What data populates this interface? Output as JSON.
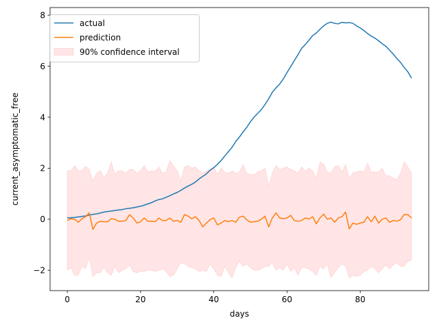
{
  "chart_data": {
    "type": "line",
    "title": "",
    "xlabel": "days",
    "ylabel": "current_asymptomatic_free",
    "xlim": [
      -4.7,
      98.7
    ],
    "ylim": [
      -2.8,
      8.3
    ],
    "x_ticks": [
      0,
      20,
      40,
      60,
      80
    ],
    "y_ticks": [
      -2,
      0,
      2,
      4,
      6,
      8
    ],
    "x_tick_labels": [
      "0",
      "20",
      "40",
      "60",
      "80"
    ],
    "y_tick_labels": [
      "−2",
      "0",
      "2",
      "4",
      "6",
      "8"
    ],
    "grid": false,
    "legend_position": "top-left",
    "x": [
      0,
      1,
      2,
      3,
      4,
      5,
      6,
      7,
      8,
      9,
      10,
      11,
      12,
      13,
      14,
      15,
      16,
      17,
      18,
      19,
      20,
      21,
      22,
      23,
      24,
      25,
      26,
      27,
      28,
      29,
      30,
      31,
      32,
      33,
      34,
      35,
      36,
      37,
      38,
      39,
      40,
      41,
      42,
      43,
      44,
      45,
      46,
      47,
      48,
      49,
      50,
      51,
      52,
      53,
      54,
      55,
      56,
      57,
      58,
      59,
      60,
      61,
      62,
      63,
      64,
      65,
      66,
      67,
      68,
      69,
      70,
      71,
      72,
      73,
      74,
      75,
      76,
      77,
      78,
      79,
      80,
      81,
      82,
      83,
      84,
      85,
      86,
      87,
      88,
      89,
      90,
      91,
      92,
      93,
      94
    ],
    "series": [
      {
        "name": "actual",
        "color": "#1f77b4",
        "kind": "line",
        "values": [
          0.05,
          0.06,
          0.07,
          0.09,
          0.11,
          0.13,
          0.16,
          0.19,
          0.21,
          0.24,
          0.28,
          0.3,
          0.32,
          0.34,
          0.36,
          0.38,
          0.41,
          0.43,
          0.45,
          0.48,
          0.51,
          0.55,
          0.6,
          0.65,
          0.72,
          0.77,
          0.8,
          0.86,
          0.92,
          0.99,
          1.05,
          1.13,
          1.22,
          1.3,
          1.37,
          1.46,
          1.58,
          1.68,
          1.78,
          1.92,
          2.02,
          2.15,
          2.3,
          2.48,
          2.65,
          2.82,
          3.05,
          3.22,
          3.42,
          3.6,
          3.82,
          4.0,
          4.15,
          4.3,
          4.5,
          4.72,
          4.98,
          5.15,
          5.3,
          5.5,
          5.75,
          5.98,
          6.22,
          6.45,
          6.7,
          6.85,
          7.02,
          7.2,
          7.3,
          7.45,
          7.58,
          7.68,
          7.73,
          7.68,
          7.66,
          7.72,
          7.7,
          7.71,
          7.68,
          7.58,
          7.5,
          7.4,
          7.28,
          7.18,
          7.1,
          7.0,
          6.88,
          6.78,
          6.63,
          6.48,
          6.3,
          6.15,
          5.95,
          5.78,
          5.53
        ]
      },
      {
        "name": "prediction",
        "color": "#ff7f0e",
        "kind": "line",
        "values": [
          -0.05,
          0.02,
          0.0,
          -0.12,
          0.02,
          0.1,
          0.25,
          -0.4,
          -0.15,
          -0.08,
          -0.1,
          -0.1,
          0.02,
          0.0,
          -0.08,
          -0.08,
          -0.05,
          0.18,
          0.05,
          -0.15,
          -0.1,
          0.05,
          -0.08,
          -0.08,
          -0.1,
          0.05,
          -0.05,
          -0.05,
          0.05,
          -0.08,
          -0.05,
          -0.12,
          0.18,
          0.12,
          0.02,
          0.1,
          -0.05,
          -0.3,
          -0.15,
          -0.02,
          0.05,
          -0.22,
          -0.15,
          -0.05,
          -0.1,
          -0.05,
          -0.12,
          0.08,
          0.12,
          -0.02,
          -0.12,
          -0.1,
          -0.08,
          0.0,
          0.12,
          -0.3,
          0.05,
          0.25,
          0.05,
          0.02,
          0.05,
          0.15,
          -0.05,
          -0.08,
          -0.05,
          0.05,
          0.0,
          0.1,
          -0.18,
          0.05,
          0.2,
          0.0,
          0.05,
          -0.12,
          0.05,
          0.1,
          0.28,
          -0.38,
          -0.15,
          -0.2,
          -0.15,
          -0.12,
          0.1,
          -0.1,
          0.12,
          -0.15,
          0.0,
          0.05,
          -0.12,
          -0.05,
          -0.08,
          -0.02,
          0.18,
          0.18,
          0.05
        ]
      },
      {
        "name": "90% confidence interval",
        "color": "#ff0000",
        "kind": "band",
        "upper": [
          1.9,
          1.9,
          2.1,
          1.9,
          1.9,
          2.08,
          1.95,
          1.5,
          1.8,
          1.9,
          1.65,
          1.8,
          2.25,
          1.75,
          1.9,
          1.9,
          1.8,
          1.95,
          1.95,
          1.8,
          1.9,
          2.1,
          1.85,
          1.9,
          1.88,
          2.05,
          1.8,
          1.85,
          2.3,
          2.1,
          1.9,
          1.5,
          2.05,
          2.1,
          2.0,
          2.05,
          1.9,
          1.8,
          1.9,
          1.95,
          2.05,
          1.75,
          2.0,
          1.85,
          1.8,
          1.9,
          1.8,
          1.85,
          2.15,
          1.8,
          1.75,
          1.75,
          1.85,
          1.9,
          2.0,
          1.3,
          1.8,
          2.1,
          1.95,
          2.0,
          2.05,
          1.95,
          1.9,
          1.8,
          2.05,
          1.88,
          2.0,
          1.9,
          1.6,
          2.25,
          2.15,
          1.85,
          1.8,
          2.05,
          2.1,
          1.85,
          2.15,
          1.6,
          1.82,
          1.85,
          1.9,
          1.85,
          2.2,
          1.85,
          1.85,
          1.85,
          2.0,
          1.7,
          1.7,
          1.6,
          1.55,
          1.8,
          2.25,
          2.05,
          1.8
        ],
        "lower": [
          -2.0,
          -1.9,
          -2.2,
          -2.2,
          -1.85,
          -1.95,
          -1.5,
          -2.25,
          -2.1,
          -2.1,
          -1.9,
          -2.1,
          -2.2,
          -1.85,
          -2.1,
          -2.0,
          -1.95,
          -1.8,
          -2.05,
          -2.1,
          -2.05,
          -2.05,
          -2.0,
          -2.0,
          -2.05,
          -2.0,
          -1.95,
          -2.05,
          -2.25,
          -2.2,
          -1.95,
          -1.7,
          -1.75,
          -1.85,
          -1.9,
          -1.95,
          -2.05,
          -2.0,
          -2.05,
          -1.75,
          -1.95,
          -2.2,
          -2.25,
          -1.85,
          -2.1,
          -2.3,
          -1.9,
          -1.65,
          -1.85,
          -1.75,
          -1.9,
          -2.0,
          -2.0,
          -1.95,
          -1.85,
          -1.85,
          -1.7,
          -2.0,
          -1.9,
          -2.0,
          -1.75,
          -2.05,
          -1.9,
          -2.2,
          -1.9,
          -1.9,
          -1.95,
          -2.05,
          -2.2,
          -1.85,
          -1.95,
          -1.75,
          -2.3,
          -2.1,
          -1.9,
          -1.75,
          -1.85,
          -2.3,
          -2.2,
          -2.25,
          -2.2,
          -2.05,
          -2.0,
          -1.85,
          -1.95,
          -2.1,
          -1.95,
          -1.8,
          -1.95,
          -1.8,
          -1.7,
          -1.85,
          -1.85,
          -1.65,
          -1.6
        ]
      }
    ]
  }
}
